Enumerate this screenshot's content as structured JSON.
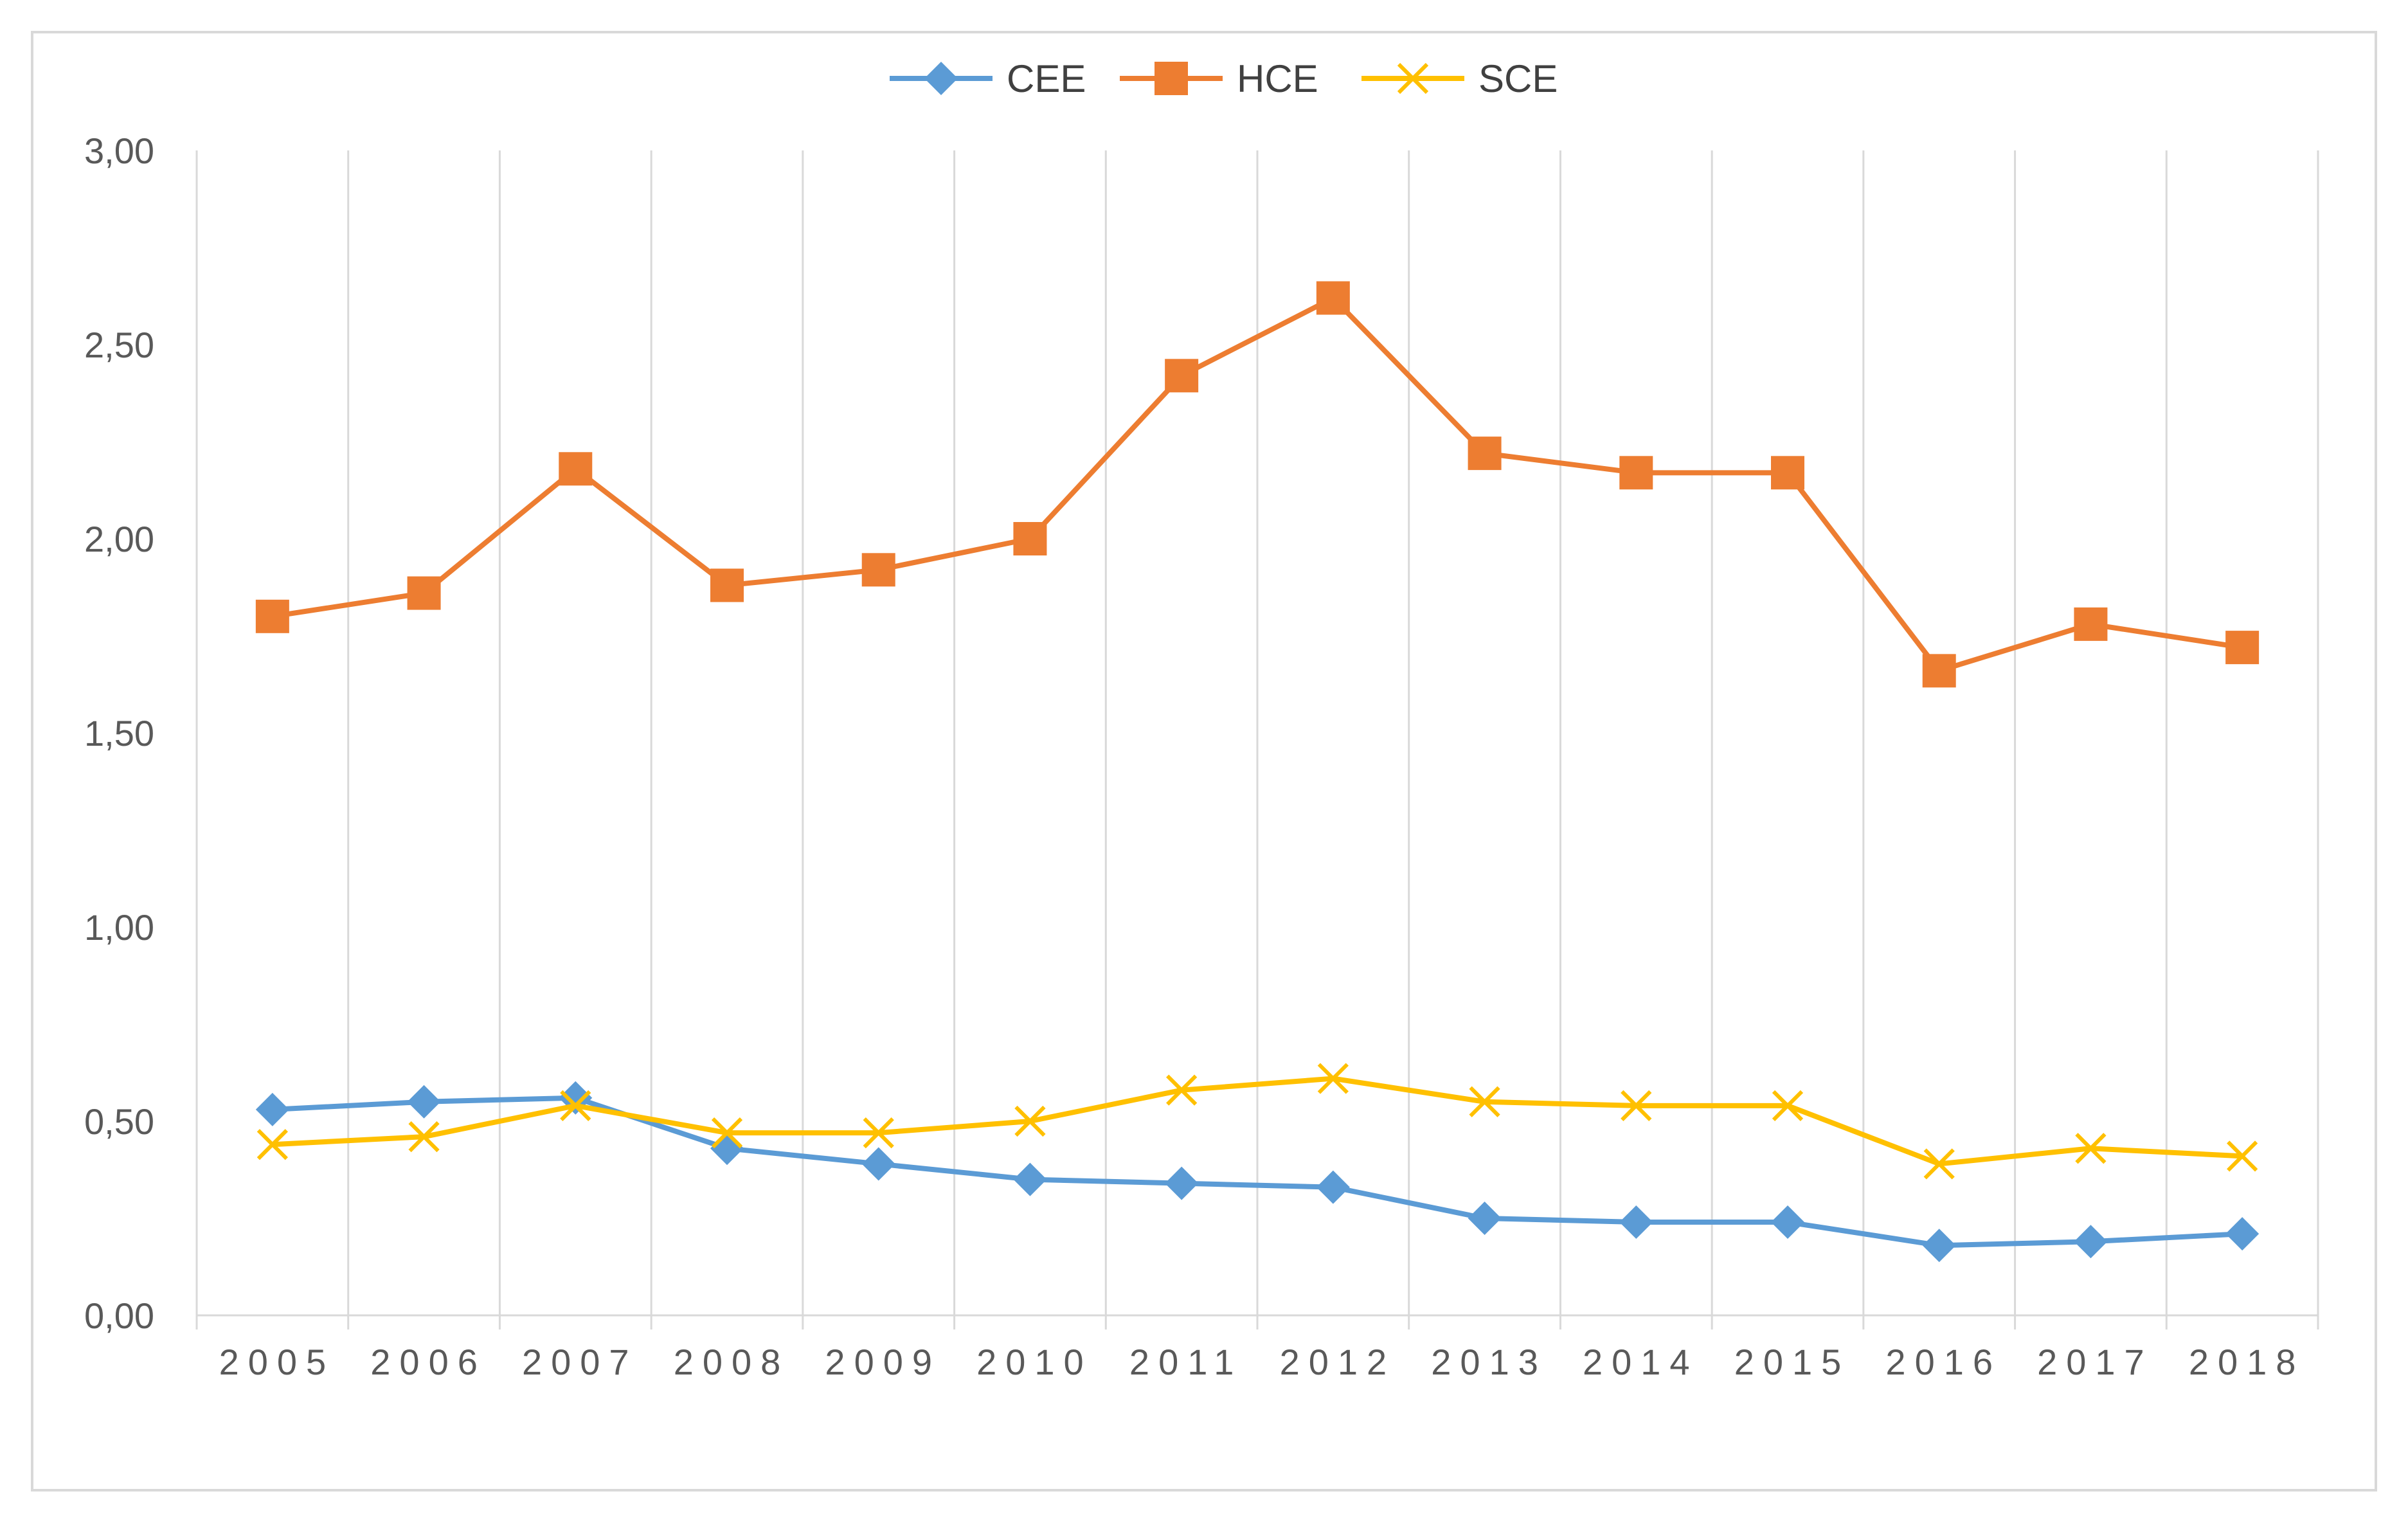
{
  "chart_data": {
    "type": "line",
    "title": "",
    "xlabel": "",
    "ylabel": "",
    "categories": [
      "2005",
      "2006",
      "2007",
      "2008",
      "2009",
      "2010",
      "2011",
      "2012",
      "2013",
      "2014",
      "2015",
      "2016",
      "2017",
      "2018"
    ],
    "ylim": [
      0,
      3
    ],
    "yticks": [
      0,
      0.5,
      1,
      1.5,
      2,
      2.5,
      3
    ],
    "ytick_labels": [
      "0,00",
      "0,50",
      "1,00",
      "1,50",
      "2,00",
      "2,50",
      "3,00"
    ],
    "grid": "vertical",
    "legend": "top-center",
    "series": [
      {
        "name": "CEE",
        "color": "#5b9bd5",
        "marker": "diamond",
        "values": [
          0.53,
          0.55,
          0.56,
          0.43,
          0.39,
          0.35,
          0.34,
          0.33,
          0.25,
          0.24,
          0.24,
          0.18,
          0.19,
          0.21
        ]
      },
      {
        "name": "HCE",
        "color": "#ed7d31",
        "marker": "square",
        "values": [
          1.8,
          1.86,
          2.18,
          1.88,
          1.92,
          2.0,
          2.42,
          2.62,
          2.22,
          2.17,
          2.17,
          1.66,
          1.78,
          1.72
        ]
      },
      {
        "name": "SCE",
        "color": "#ffc000",
        "marker": "x",
        "values": [
          0.44,
          0.46,
          0.54,
          0.47,
          0.47,
          0.5,
          0.58,
          0.61,
          0.55,
          0.54,
          0.54,
          0.39,
          0.43,
          0.41
        ]
      }
    ]
  }
}
